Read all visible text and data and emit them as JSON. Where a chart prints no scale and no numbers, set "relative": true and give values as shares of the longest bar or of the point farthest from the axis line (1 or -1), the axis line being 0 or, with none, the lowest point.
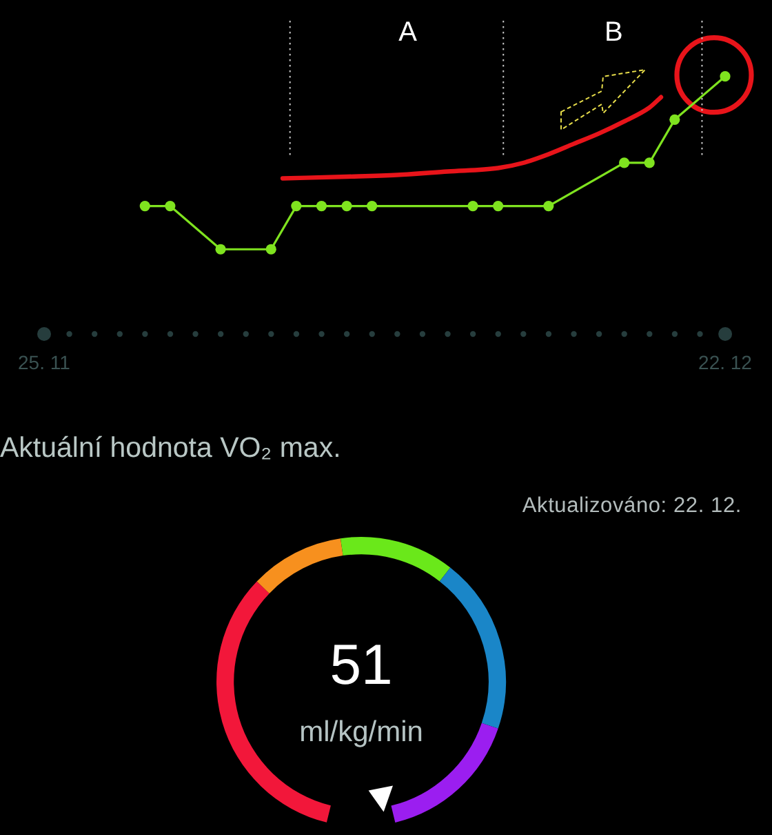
{
  "chart_data": [
    {
      "type": "line",
      "relative": true,
      "marker": "circle",
      "x": [
        "--11-29",
        "--11-30",
        "--12-02",
        "--12-04",
        "--12-05",
        "--12-06",
        "--12-07",
        "--12-08",
        "--12-12",
        "--12-13",
        "--12-15",
        "--12-18",
        "--12-19",
        "--12-20",
        "--12-22"
      ],
      "series": [
        {
          "color": "#7fe31f",
          "values": [
            0.25,
            0.25,
            0,
            0,
            0.25,
            0.25,
            0.25,
            0.25,
            0.25,
            0.25,
            0.25,
            0.5,
            0.5,
            0.75,
            1
          ]
        },
        {
          "type": "line",
          "color": "#e8141a",
          "marker": "none",
          "x": [
            "--12-04T11:00",
            "--12-07",
            "--12-09",
            "--12-11",
            "--12-13",
            "--12-14",
            "--12-15",
            "--12-16",
            "--12-17",
            "--12-18",
            "--12-19",
            "--12-19T11:00"
          ],
          "values": [
            0.41,
            0.42,
            0.43,
            0.45,
            0.47,
            0.5,
            0.55,
            0.61,
            0.67,
            0.74,
            0.82,
            0.88
          ]
        }
      ],
      "xlim": [
        "--11-25",
        "--12-22"
      ],
      "xticks": [
        {
          "value": "--11-25",
          "label": "25. 11"
        },
        {
          "value": "--12-22",
          "label": "22. 12"
        }
      ],
      "ref_lines": [
        {
          "axis": "x",
          "value": "--12-04T18:00",
          "color": "#c9c9c9",
          "line_style": "dotted"
        },
        {
          "axis": "x",
          "value": "--12-13T05:00",
          "color": "#c9c9c9",
          "line_style": "dotted"
        },
        {
          "axis": "x",
          "value": "--12-21T02:00",
          "color": "#c9c9c9",
          "line_style": "dotted"
        }
      ],
      "annotations": [
        "A",
        "B"
      ]
    },
    {
      "type": "donut",
      "title": "Aktuální hodnota VO₂ max.",
      "subtitle": "Aktualizováno: 22. 12.",
      "categories": [
        null,
        null,
        null,
        null,
        null
      ],
      "values": [
        36.1,
        11.4,
        13.9,
        21.3,
        17.3
      ],
      "colors": [
        "#f2173a",
        "#f7901e",
        "#6ae81a",
        "#1a86c8",
        "#9b1ef0"
      ],
      "annotations": [
        "51",
        "ml/kg/min"
      ]
    }
  ]
}
